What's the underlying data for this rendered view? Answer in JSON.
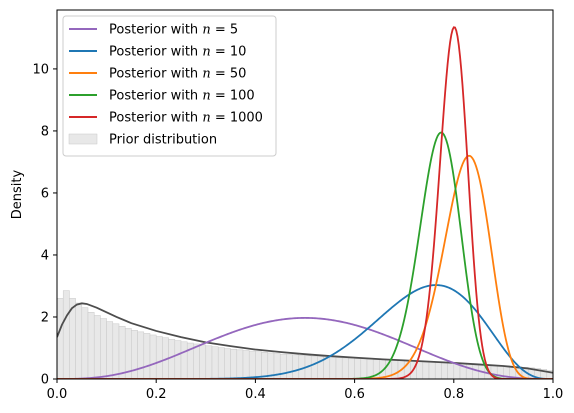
{
  "chart_data": {
    "type": "line",
    "title": "",
    "xlabel": "",
    "ylabel": "Density",
    "xlim": [
      0.0,
      1.0
    ],
    "ylim": [
      0,
      11.9
    ],
    "x_ticks": [
      "0.0",
      "0.2",
      "0.4",
      "0.6",
      "0.8",
      "1.0"
    ],
    "y_ticks": [
      "0",
      "2",
      "4",
      "6",
      "8",
      "10"
    ],
    "legend_position": "top-left",
    "grid": false,
    "series": [
      {
        "name": "Posterior with n = 5",
        "legend_prefix": "Posterior with ",
        "legend_var": "n",
        "legend_suffix": " = 5",
        "color": "#9467bd",
        "alpha": 4.0,
        "beta": 4.0,
        "peak": 1.97
      },
      {
        "name": "Posterior with n = 10",
        "legend_prefix": "Posterior with ",
        "legend_var": "n",
        "legend_suffix": " = 10",
        "color": "#1f77b4",
        "alpha": 12.0,
        "beta": 4.4,
        "peak": 3.03
      },
      {
        "name": "Posterior with n = 50",
        "legend_prefix": "Posterior with ",
        "legend_var": "n",
        "legend_suffix": " = 50",
        "color": "#ff7f0e",
        "alpha": 55.0,
        "beta": 12.0,
        "peak": 7.2
      },
      {
        "name": "Posterior with n = 100",
        "legend_prefix": "Posterior with ",
        "legend_var": "n",
        "legend_suffix": " = 100",
        "color": "#2ca02c",
        "alpha": 80.0,
        "beta": 24.0,
        "peak": 7.95
      },
      {
        "name": "Posterior with n = 1000",
        "legend_prefix": "Posterior with ",
        "legend_var": "n",
        "legend_suffix": " = 1000",
        "color": "#d62728",
        "alpha": 162.0,
        "beta": 41.0,
        "peak": 11.35
      }
    ],
    "prior": {
      "name": "Prior distribution",
      "bar_color": "#e8e8e8",
      "bar_edge_color": "#c8c8c8",
      "curve_color": "#4d4d4d",
      "bin_width": 0.0125,
      "bin_values": [
        2.6,
        2.85,
        2.6,
        2.45,
        2.3,
        2.15,
        2.05,
        1.95,
        1.85,
        1.78,
        1.7,
        1.63,
        1.57,
        1.52,
        1.47,
        1.42,
        1.37,
        1.33,
        1.28,
        1.24,
        1.2,
        1.16,
        1.13,
        1.1,
        1.07,
        1.04,
        1.01,
        0.98,
        0.96,
        0.94,
        0.92,
        0.9,
        0.88,
        0.86,
        0.84,
        0.82,
        0.8,
        0.79,
        0.78,
        0.76,
        0.75,
        0.74,
        0.72,
        0.71,
        0.7,
        0.69,
        0.68,
        0.67,
        0.66,
        0.65,
        0.64,
        0.63,
        0.62,
        0.61,
        0.6,
        0.59,
        0.58,
        0.57,
        0.56,
        0.55,
        0.54,
        0.53,
        0.52,
        0.51,
        0.5,
        0.49,
        0.48,
        0.47,
        0.46,
        0.45,
        0.44,
        0.43,
        0.42,
        0.41,
        0.4,
        0.38,
        0.36,
        0.34,
        0.31,
        0.27
      ],
      "curve_x": [
        0.0,
        0.01,
        0.02,
        0.03,
        0.04,
        0.05,
        0.06,
        0.08,
        0.1,
        0.12,
        0.15,
        0.2,
        0.25,
        0.3,
        0.35,
        0.4,
        0.45,
        0.5,
        0.55,
        0.6,
        0.65,
        0.7,
        0.75,
        0.8,
        0.85,
        0.9,
        0.95,
        1.0
      ],
      "curve_y": [
        1.35,
        1.75,
        2.05,
        2.28,
        2.4,
        2.44,
        2.42,
        2.3,
        2.15,
        2.0,
        1.8,
        1.55,
        1.35,
        1.18,
        1.06,
        0.95,
        0.87,
        0.8,
        0.74,
        0.69,
        0.64,
        0.6,
        0.56,
        0.52,
        0.47,
        0.42,
        0.34,
        0.2
      ]
    }
  }
}
